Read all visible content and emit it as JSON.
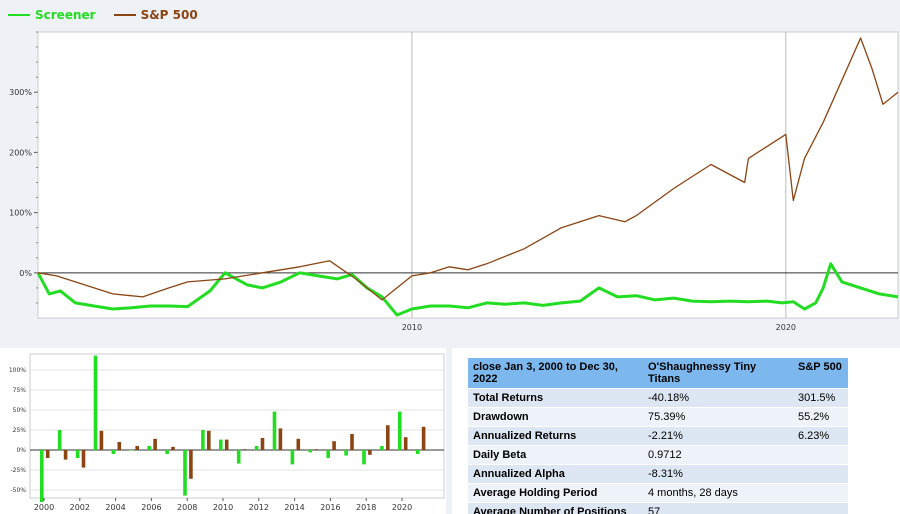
{
  "legend": [
    {
      "label": "Screener",
      "color": "#22dd22"
    },
    {
      "label": "S&P 500",
      "color": "#8b4513"
    }
  ],
  "chart_data": [
    {
      "type": "line",
      "x_ticks": [
        "2010",
        "2020"
      ],
      "y_ticks": [
        "0%",
        "100%",
        "200%",
        "300%"
      ],
      "ylim": [
        -75,
        400
      ],
      "xlim": [
        2000.0,
        2023.0
      ],
      "grid": true,
      "legend_position": "top-left",
      "series": [
        {
          "name": "Screener",
          "color": "#22dd22",
          "x": [
            2000.0,
            2000.3,
            2000.6,
            2001.0,
            2001.5,
            2002.0,
            2002.5,
            2003.0,
            2003.5,
            2004.0,
            2004.6,
            2005.0,
            2005.6,
            2006.0,
            2006.5,
            2007.0,
            2007.5,
            2008.0,
            2008.4,
            2008.8,
            2009.2,
            2009.6,
            2010.0,
            2010.5,
            2011.0,
            2011.5,
            2012.0,
            2012.5,
            2013.0,
            2013.5,
            2014.0,
            2014.5,
            2015.0,
            2015.5,
            2016.0,
            2016.5,
            2017.0,
            2017.5,
            2018.0,
            2018.5,
            2019.0,
            2019.5,
            2019.9,
            2020.2,
            2020.5,
            2020.8,
            2021.0,
            2021.2,
            2021.5,
            2022.0,
            2022.5,
            2023.0
          ],
          "y": [
            0,
            -35,
            -30,
            -50,
            -55,
            -60,
            -58,
            -55,
            -55,
            -56,
            -30,
            0,
            -20,
            -25,
            -15,
            0,
            -5,
            -10,
            -3,
            -25,
            -40,
            -70,
            -60,
            -55,
            -55,
            -58,
            -50,
            -52,
            -50,
            -54,
            -50,
            -47,
            -25,
            -40,
            -38,
            -45,
            -42,
            -47,
            -48,
            -47,
            -48,
            -47,
            -50,
            -48,
            -60,
            -50,
            -25,
            15,
            -15,
            -25,
            -35,
            -40
          ]
        },
        {
          "name": "S&P 500",
          "color": "#8b4513",
          "x": [
            2000.0,
            2000.5,
            2001.0,
            2001.5,
            2002.0,
            2002.8,
            2003.5,
            2004.0,
            2005.0,
            2006.0,
            2007.0,
            2007.8,
            2008.5,
            2009.2,
            2010.0,
            2010.5,
            2011.0,
            2011.5,
            2012.0,
            2013.0,
            2014.0,
            2015.0,
            2015.7,
            2016.0,
            2017.0,
            2017.5,
            2018.0,
            2018.9,
            2019.0,
            2019.5,
            2020.0,
            2020.2,
            2020.5,
            2021.0,
            2021.5,
            2022.0,
            2022.3,
            2022.6,
            2023.0
          ],
          "y": [
            0,
            -5,
            -15,
            -25,
            -35,
            -40,
            -25,
            -15,
            -10,
            0,
            10,
            20,
            -10,
            -45,
            -5,
            0,
            10,
            5,
            15,
            40,
            75,
            95,
            85,
            95,
            140,
            160,
            180,
            150,
            190,
            210,
            230,
            120,
            190,
            250,
            320,
            390,
            340,
            280,
            300
          ]
        }
      ]
    },
    {
      "type": "bar",
      "categories": [
        "2000",
        "2001",
        "2002",
        "2003",
        "2004",
        "2005",
        "2006",
        "2007",
        "2008",
        "2009",
        "2010",
        "2011",
        "2012",
        "2013",
        "2014",
        "2015",
        "2016",
        "2017",
        "2018",
        "2019",
        "2020",
        "2021"
      ],
      "x_ticks": [
        "2000",
        "2002",
        "2004",
        "2006",
        "2008",
        "2010",
        "2012",
        "2014",
        "2016",
        "2018",
        "2020"
      ],
      "y_ticks": [
        "100%",
        "75%",
        "50%",
        "25%",
        "0%",
        "-25%",
        "-50%"
      ],
      "ylim": [
        -60,
        120
      ],
      "grid": true,
      "series": [
        {
          "name": "Screener",
          "color": "#22dd22",
          "values": [
            -65,
            25,
            -10,
            118,
            -5,
            0,
            5,
            -5,
            -57,
            25,
            13,
            -17,
            5,
            48,
            -18,
            -3,
            -10,
            -7,
            -18,
            5,
            48,
            -5
          ]
        },
        {
          "name": "S&P 500",
          "color": "#8b4513",
          "values": [
            -10,
            -12,
            -22,
            24,
            10,
            5,
            14,
            4,
            -36,
            24,
            13,
            1,
            15,
            27,
            14,
            1,
            11,
            20,
            -6,
            31,
            16,
            29
          ]
        }
      ]
    }
  ],
  "stats": {
    "headers": [
      "close Jan 3, 2000 to Dec 30, 2022",
      "O'Shaughnessy Tiny Titans",
      "S&P 500"
    ],
    "rows": [
      {
        "label": "Total Returns",
        "screener": "-40.18%",
        "sp": "301.5%"
      },
      {
        "label": "Drawdown",
        "screener": "75.39%",
        "sp": "55.2%"
      },
      {
        "label": "Annualized Returns",
        "screener": "-2.21%",
        "sp": "6.23%"
      },
      {
        "label": "Daily Beta",
        "screener": "0.9712",
        "sp": ""
      },
      {
        "label": "Annualized Alpha",
        "screener": "-8.31%",
        "sp": ""
      },
      {
        "label": "Average Holding Period",
        "screener": "4 months, 28 days",
        "sp": ""
      },
      {
        "label": "Average Number of Positions",
        "screener": "57",
        "sp": ""
      }
    ]
  }
}
